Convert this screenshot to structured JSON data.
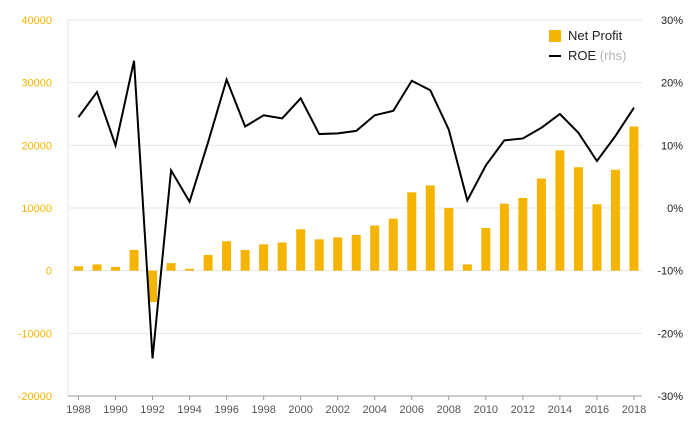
{
  "chart_data": {
    "type": "bar+line",
    "title": "",
    "xlabel": "",
    "years": [
      1988,
      1989,
      1990,
      1991,
      1992,
      1993,
      1994,
      1995,
      1996,
      1997,
      1998,
      1999,
      2000,
      2001,
      2002,
      2003,
      2004,
      2005,
      2006,
      2007,
      2008,
      2009,
      2010,
      2011,
      2012,
      2013,
      2014,
      2015,
      2016,
      2017,
      2018
    ],
    "x_tick_labels": [
      "1988",
      "1990",
      "1992",
      "1994",
      "1996",
      "1998",
      "2000",
      "2002",
      "2004",
      "2006",
      "2008",
      "2010",
      "2012",
      "2014",
      "2016",
      "2018"
    ],
    "series": [
      {
        "name": "Net Profit",
        "kind": "bar",
        "axis": "left",
        "color": "#F5B400",
        "values": [
          700,
          1000,
          600,
          3300,
          -5000,
          1200,
          300,
          2500,
          4700,
          3300,
          4200,
          4500,
          6600,
          5000,
          5300,
          5700,
          7200,
          8300,
          12500,
          13600,
          10000,
          1000,
          6800,
          10700,
          11600,
          14700,
          19200,
          16500,
          10600,
          16100,
          23000
        ]
      },
      {
        "name": "ROE",
        "name_suffix": "(rhs)",
        "kind": "line",
        "axis": "right",
        "color": "#000000",
        "values": [
          14.5,
          18.5,
          10.0,
          23.5,
          -24.0,
          6.0,
          1.0,
          10.5,
          20.5,
          13.0,
          14.8,
          14.3,
          17.5,
          11.8,
          11.9,
          12.3,
          14.8,
          15.5,
          20.3,
          18.8,
          12.5,
          1.2,
          6.8,
          10.8,
          11.1,
          12.8,
          15.0,
          12.0,
          7.5,
          11.5,
          16.0
        ]
      }
    ],
    "left_axis": {
      "ylim": [
        -20000,
        40000
      ],
      "ticks": [
        40000,
        30000,
        20000,
        10000,
        0,
        -10000,
        -20000
      ],
      "tick_labels": [
        "40000",
        "30000",
        "20000",
        "10000",
        "0",
        "-10000",
        "-20000"
      ]
    },
    "right_axis": {
      "ylim": [
        -30,
        30
      ],
      "ticks": [
        30,
        20,
        10,
        0,
        -10,
        -20,
        -30
      ],
      "tick_labels": [
        "30%",
        "20%",
        "10%",
        "0%",
        "-10%",
        "-20%",
        "-30%"
      ]
    },
    "grid": true,
    "legend": {
      "placement": "top-right"
    },
    "colors": {
      "bar": "#F5B400",
      "line": "#000000",
      "left_ticks": "#F5B400",
      "right_ticks": "#222222",
      "grid": "#e6e6e6",
      "axis": "#999999",
      "suffix": "#b3b3b3"
    }
  }
}
